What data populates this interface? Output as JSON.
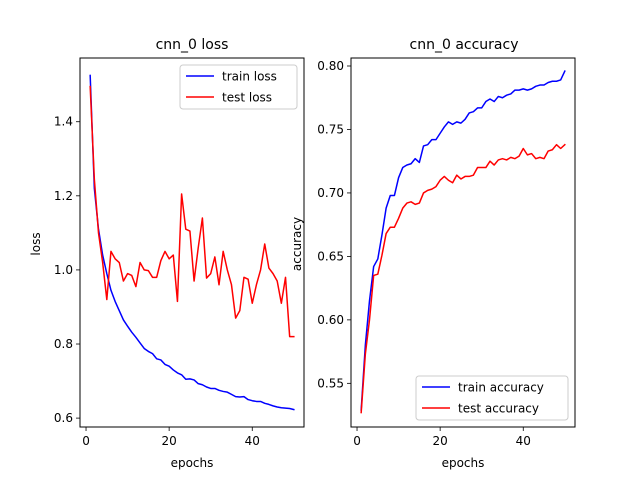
{
  "chart_data": [
    {
      "type": "line",
      "title": "cnn_0 loss",
      "xlabel": "epochs",
      "ylabel": "loss",
      "xlim": [
        -1.45,
        52.45
      ],
      "ylim": [
        0.576,
        1.572
      ],
      "xticks": [
        0,
        20,
        40
      ],
      "yticks": [
        0.6,
        0.8,
        1.0,
        1.2,
        1.4
      ],
      "ytick_labels": [
        "0.6",
        "0.8",
        "1.0",
        "1.2",
        "1.4"
      ],
      "grid": false,
      "legend": "upper right",
      "x": [
        1,
        2,
        3,
        4,
        5,
        6,
        7,
        8,
        9,
        10,
        11,
        12,
        13,
        14,
        15,
        16,
        17,
        18,
        19,
        20,
        21,
        22,
        23,
        24,
        25,
        26,
        27,
        28,
        29,
        30,
        31,
        32,
        33,
        34,
        35,
        36,
        37,
        38,
        39,
        40,
        41,
        42,
        43,
        44,
        45,
        46,
        47,
        48,
        49,
        50
      ],
      "series": [
        {
          "name": "train loss",
          "color": "#0000ff",
          "values": [
            1.525,
            1.22,
            1.11,
            1.04,
            0.99,
            0.945,
            0.915,
            0.89,
            0.865,
            0.848,
            0.832,
            0.818,
            0.803,
            0.788,
            0.78,
            0.774,
            0.76,
            0.757,
            0.745,
            0.74,
            0.73,
            0.722,
            0.717,
            0.705,
            0.706,
            0.703,
            0.693,
            0.69,
            0.684,
            0.68,
            0.68,
            0.675,
            0.672,
            0.67,
            0.664,
            0.658,
            0.657,
            0.658,
            0.65,
            0.647,
            0.645,
            0.645,
            0.64,
            0.637,
            0.633,
            0.63,
            0.628,
            0.627,
            0.626,
            0.623
          ]
        },
        {
          "name": "test loss",
          "color": "#ff0000",
          "values": [
            1.495,
            1.245,
            1.1,
            1.02,
            0.92,
            1.05,
            1.03,
            1.02,
            0.97,
            0.99,
            0.985,
            0.955,
            1.02,
            1.0,
            0.998,
            0.98,
            0.98,
            1.025,
            1.05,
            1.03,
            1.04,
            0.915,
            1.205,
            1.11,
            1.105,
            0.97,
            1.06,
            1.14,
            0.978,
            0.99,
            1.035,
            0.96,
            1.05,
            1.0,
            0.96,
            0.87,
            0.89,
            0.98,
            0.975,
            0.91,
            0.96,
            1.0,
            1.07,
            1.005,
            0.99,
            0.97,
            0.91,
            0.98,
            0.82,
            0.82
          ]
        }
      ]
    },
    {
      "type": "line",
      "title": "cnn_0 accuracy",
      "xlabel": "epochs",
      "ylabel": "accuracy",
      "xlim": [
        -1.45,
        52.45
      ],
      "ylim": [
        0.5156,
        0.8063
      ],
      "xticks": [
        0,
        20,
        40
      ],
      "yticks": [
        0.55,
        0.6,
        0.65,
        0.7,
        0.75,
        0.8
      ],
      "ytick_labels": [
        "0.55",
        "0.60",
        "0.65",
        "0.70",
        "0.75",
        "0.80"
      ],
      "grid": false,
      "legend": "lower right",
      "x": [
        1,
        2,
        3,
        4,
        5,
        6,
        7,
        8,
        9,
        10,
        11,
        12,
        13,
        14,
        15,
        16,
        17,
        18,
        19,
        20,
        21,
        22,
        23,
        24,
        25,
        26,
        27,
        28,
        29,
        30,
        31,
        32,
        33,
        34,
        35,
        36,
        37,
        38,
        39,
        40,
        41,
        42,
        43,
        44,
        45,
        46,
        47,
        48,
        49,
        50
      ],
      "series": [
        {
          "name": "train accuracy",
          "color": "#0000ff",
          "values": [
            0.529,
            0.58,
            0.615,
            0.642,
            0.648,
            0.667,
            0.688,
            0.698,
            0.698,
            0.712,
            0.72,
            0.722,
            0.723,
            0.727,
            0.724,
            0.737,
            0.738,
            0.742,
            0.742,
            0.747,
            0.752,
            0.756,
            0.754,
            0.756,
            0.755,
            0.758,
            0.763,
            0.764,
            0.767,
            0.767,
            0.772,
            0.774,
            0.772,
            0.776,
            0.775,
            0.777,
            0.778,
            0.781,
            0.781,
            0.782,
            0.781,
            0.782,
            0.784,
            0.785,
            0.785,
            0.787,
            0.788,
            0.788,
            0.789,
            0.796
          ]
        },
        {
          "name": "test accuracy",
          "color": "#ff0000",
          "values": [
            0.527,
            0.573,
            0.6,
            0.635,
            0.636,
            0.651,
            0.668,
            0.673,
            0.673,
            0.68,
            0.688,
            0.692,
            0.693,
            0.691,
            0.692,
            0.7,
            0.702,
            0.703,
            0.705,
            0.71,
            0.713,
            0.71,
            0.708,
            0.714,
            0.711,
            0.713,
            0.713,
            0.714,
            0.72,
            0.72,
            0.72,
            0.725,
            0.722,
            0.726,
            0.727,
            0.726,
            0.728,
            0.727,
            0.729,
            0.735,
            0.73,
            0.731,
            0.727,
            0.728,
            0.727,
            0.733,
            0.734,
            0.738,
            0.735,
            0.738
          ]
        }
      ]
    }
  ]
}
